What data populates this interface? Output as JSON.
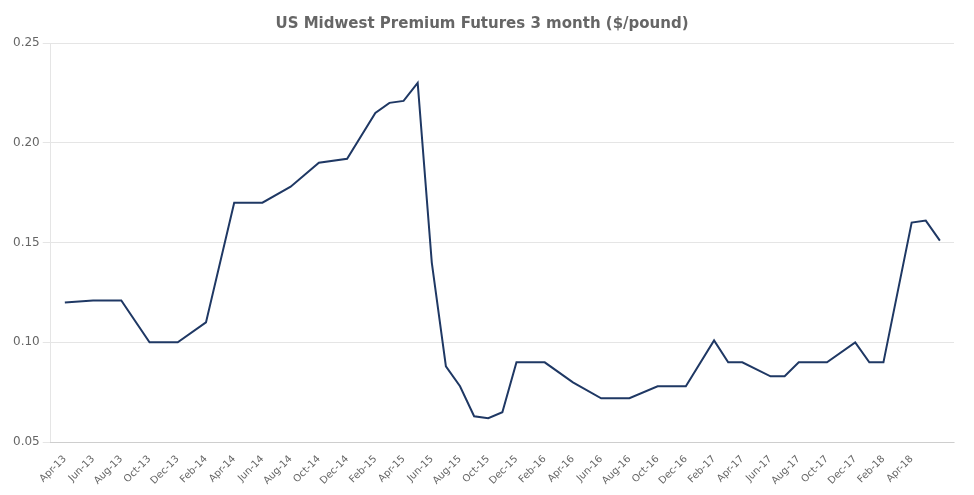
{
  "chart_data": {
    "type": "line",
    "title": "US Midwest Premium Futures 3 month ($/pound)",
    "color": "#1F3864",
    "x": [
      0,
      2,
      4,
      6,
      8,
      10,
      12,
      14,
      16,
      18,
      20,
      22,
      23,
      24,
      25,
      26,
      27,
      28,
      29,
      30,
      31,
      32,
      34,
      36,
      38,
      40,
      42,
      44,
      46,
      47,
      48,
      50,
      51,
      52,
      54,
      56,
      57,
      58,
      60,
      61,
      62
    ],
    "values": [
      0.12,
      0.121,
      0.121,
      0.1,
      0.1,
      0.11,
      0.17,
      0.17,
      0.178,
      0.19,
      0.192,
      0.215,
      0.22,
      0.221,
      0.23,
      0.14,
      0.088,
      0.078,
      0.063,
      0.062,
      0.065,
      0.09,
      0.09,
      0.08,
      0.072,
      0.072,
      0.078,
      0.078,
      0.101,
      0.09,
      0.09,
      0.083,
      0.083,
      0.09,
      0.09,
      0.1,
      0.09,
      0.09,
      0.16,
      0.161,
      0.151
    ],
    "xlim": [
      -1,
      63
    ],
    "xticks": [
      {
        "value": 0,
        "label": "Apr-13"
      },
      {
        "value": 2,
        "label": "Jun-13"
      },
      {
        "value": 4,
        "label": "Aug-13"
      },
      {
        "value": 6,
        "label": "Oct-13"
      },
      {
        "value": 8,
        "label": "Dec-13"
      },
      {
        "value": 10,
        "label": "Feb-14"
      },
      {
        "value": 12,
        "label": "Apr-14"
      },
      {
        "value": 14,
        "label": "Jun-14"
      },
      {
        "value": 16,
        "label": "Aug-14"
      },
      {
        "value": 18,
        "label": "Oct-14"
      },
      {
        "value": 20,
        "label": "Dec-14"
      },
      {
        "value": 22,
        "label": "Feb-15"
      },
      {
        "value": 24,
        "label": "Apr-15"
      },
      {
        "value": 26,
        "label": "Jun-15"
      },
      {
        "value": 28,
        "label": "Aug-15"
      },
      {
        "value": 30,
        "label": "Oct-15"
      },
      {
        "value": 32,
        "label": "Dec-15"
      },
      {
        "value": 34,
        "label": "Feb-16"
      },
      {
        "value": 36,
        "label": "Apr-16"
      },
      {
        "value": 38,
        "label": "Jun-16"
      },
      {
        "value": 40,
        "label": "Aug-16"
      },
      {
        "value": 42,
        "label": "Oct-16"
      },
      {
        "value": 44,
        "label": "Dec-16"
      },
      {
        "value": 46,
        "label": "Feb-17"
      },
      {
        "value": 48,
        "label": "Apr-17"
      },
      {
        "value": 50,
        "label": "Jun-17"
      },
      {
        "value": 52,
        "label": "Aug-17"
      },
      {
        "value": 54,
        "label": "Oct-17"
      },
      {
        "value": 56,
        "label": "Dec-17"
      },
      {
        "value": 58,
        "label": "Feb-18"
      },
      {
        "value": 60,
        "label": "Apr-18"
      }
    ],
    "ylim": [
      0.05,
      0.25
    ],
    "yticks": [
      0.05,
      {
        "value": 0.1,
        "label": "0.10"
      },
      0.15,
      {
        "value": 0.2,
        "label": "0.20"
      },
      0.25
    ],
    "grid": true
  }
}
